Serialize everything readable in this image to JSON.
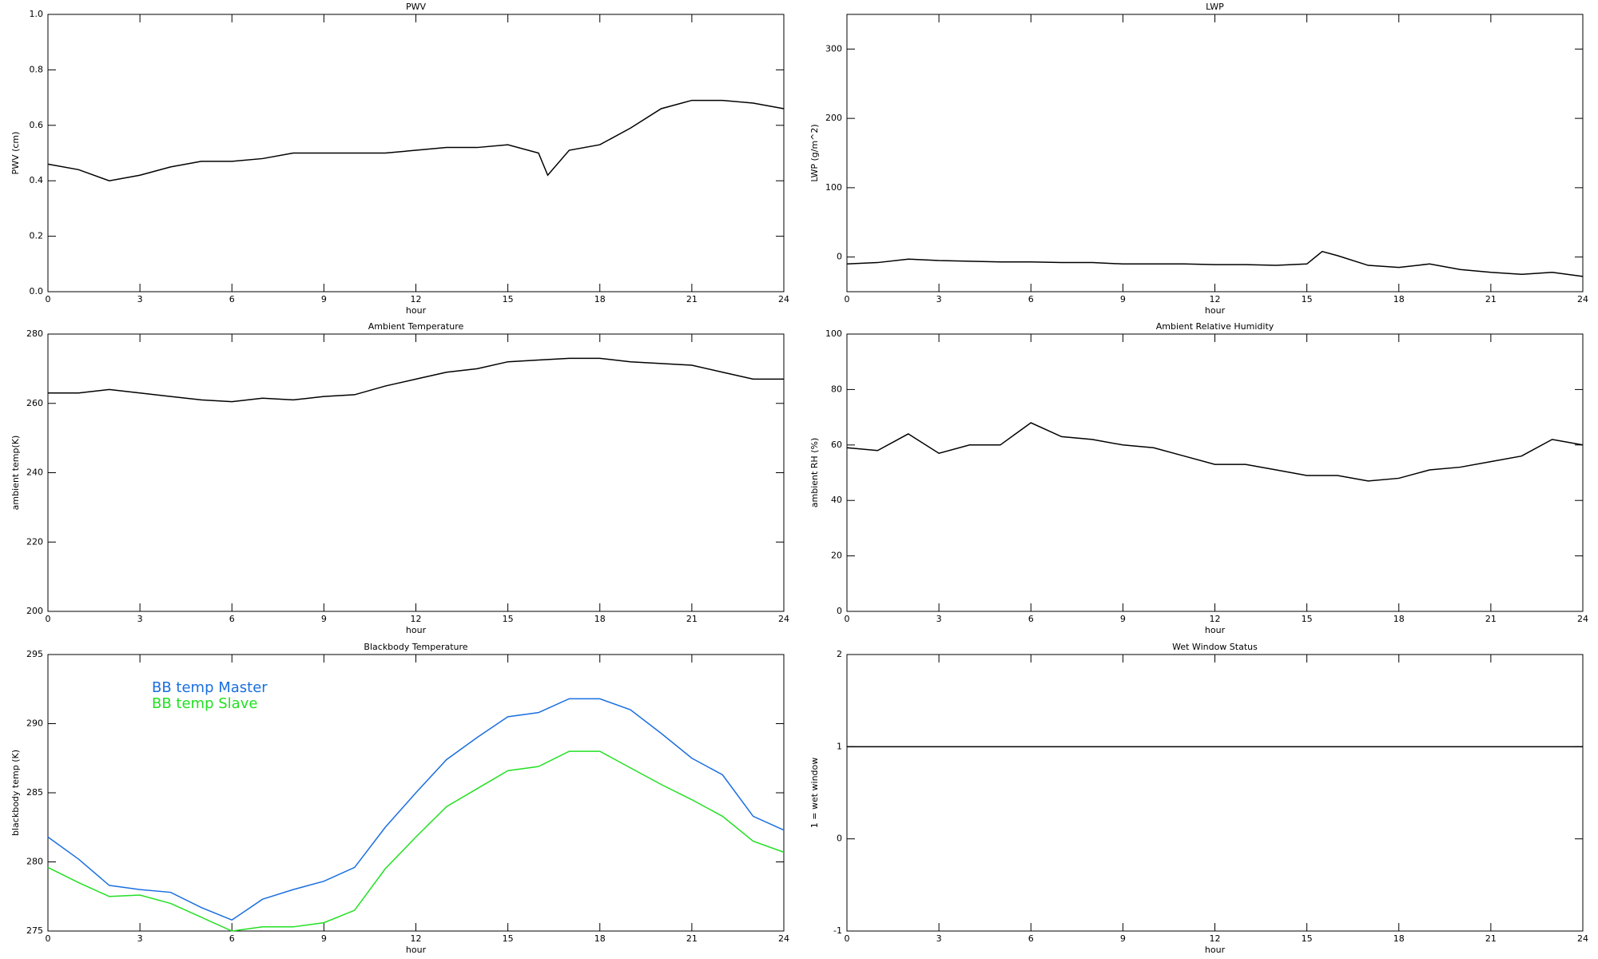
{
  "chart_data": [
    {
      "type": "line",
      "title": "PWV",
      "xlabel": "hour",
      "ylabel": "PWV (cm)",
      "x": [
        0,
        1,
        2,
        3,
        4,
        5,
        6,
        7,
        8,
        9,
        10,
        11,
        12,
        13,
        14,
        15,
        16,
        16.3,
        17,
        18,
        19,
        20,
        21,
        22,
        23,
        24
      ],
      "values": [
        0.46,
        0.44,
        0.4,
        0.42,
        0.45,
        0.47,
        0.47,
        0.48,
        0.5,
        0.5,
        0.5,
        0.5,
        0.51,
        0.52,
        0.52,
        0.53,
        0.5,
        0.42,
        0.51,
        0.53,
        0.59,
        0.66,
        0.69,
        0.69,
        0.68,
        0.66
      ],
      "color": "#000000",
      "xlim": [
        0,
        24
      ],
      "xticks": [
        0,
        3,
        6,
        9,
        12,
        15,
        18,
        21,
        24
      ],
      "ylim": [
        0,
        1
      ],
      "yticks": [
        {
          "value": 0,
          "label": "0.0"
        },
        0.2,
        0.4,
        0.6,
        0.8,
        {
          "value": 1,
          "label": "1.0"
        }
      ]
    },
    {
      "type": "line",
      "title": "LWP",
      "xlabel": "hour",
      "ylabel": "LWP (g/m^2)",
      "x": [
        0,
        1,
        2,
        3,
        4,
        5,
        6,
        7,
        8,
        9,
        10,
        11,
        12,
        13,
        14,
        15,
        15.5,
        16,
        17,
        18,
        19,
        20,
        21,
        22,
        23,
        24
      ],
      "values": [
        -10,
        -8,
        -3,
        -5,
        -6,
        -7,
        -7,
        -8,
        -8,
        -10,
        -10,
        -10,
        -11,
        -11,
        -12,
        -10,
        8,
        2,
        -12,
        -15,
        -10,
        -18,
        -22,
        -25,
        -22,
        -28
      ],
      "color": "#000000",
      "xlim": [
        0,
        24
      ],
      "xticks": [
        0,
        3,
        6,
        9,
        12,
        15,
        18,
        21,
        24
      ],
      "ylim": [
        -50,
        350
      ],
      "yticks": [
        0,
        100,
        200,
        300
      ]
    },
    {
      "type": "line",
      "title": "Ambient Temperature",
      "xlabel": "hour",
      "ylabel": "ambient temp(K)",
      "x": [
        0,
        1,
        2,
        3,
        4,
        5,
        6,
        7,
        8,
        9,
        10,
        11,
        12,
        13,
        14,
        15,
        16,
        17,
        18,
        19,
        20,
        21,
        22,
        23,
        24
      ],
      "values": [
        263,
        263,
        264,
        263,
        262,
        261,
        260.5,
        261.5,
        261,
        262,
        262.5,
        265,
        267,
        269,
        270,
        272,
        272.5,
        273,
        273,
        272,
        271.5,
        271,
        269,
        267,
        267
      ],
      "color": "#000000",
      "xlim": [
        0,
        24
      ],
      "xticks": [
        0,
        3,
        6,
        9,
        12,
        15,
        18,
        21,
        24
      ],
      "ylim": [
        200,
        280
      ],
      "yticks": [
        200,
        220,
        240,
        260,
        280
      ]
    },
    {
      "type": "line",
      "title": "Ambient Relative Humidity",
      "xlabel": "hour",
      "ylabel": "ambient RH (%)",
      "x": [
        0,
        1,
        2,
        3,
        4,
        5,
        6,
        7,
        8,
        9,
        10,
        11,
        12,
        13,
        14,
        15,
        16,
        17,
        18,
        19,
        20,
        21,
        22,
        23,
        24
      ],
      "values": [
        59,
        58,
        64,
        57,
        60,
        60,
        68,
        63,
        62,
        60,
        59,
        56,
        53,
        53,
        51,
        49,
        49,
        47,
        48,
        51,
        52,
        54,
        56,
        62,
        60
      ],
      "color": "#000000",
      "xlim": [
        0,
        24
      ],
      "xticks": [
        0,
        3,
        6,
        9,
        12,
        15,
        18,
        21,
        24
      ],
      "ylim": [
        0,
        100
      ],
      "yticks": [
        0,
        20,
        40,
        60,
        80,
        100
      ]
    },
    {
      "type": "line",
      "title": "Blackbody Temperature",
      "xlabel": "hour",
      "ylabel": "blackbody temp (K)",
      "x": [
        0,
        1,
        2,
        3,
        4,
        5,
        6,
        7,
        8,
        9,
        10,
        11,
        12,
        13,
        14,
        15,
        16,
        17,
        18,
        19,
        20,
        21,
        22,
        23,
        24
      ],
      "series": [
        {
          "name": "BB temp Master",
          "color": "#1a6fe0",
          "values": [
            281.8,
            280.2,
            278.3,
            278.0,
            277.8,
            276.7,
            275.8,
            277.3,
            278.0,
            278.6,
            279.6,
            282.5,
            285,
            287.4,
            289,
            290.5,
            290.8,
            291.8,
            291.8,
            291,
            289.3,
            287.5,
            286.3,
            283.3,
            282.3
          ]
        },
        {
          "name": "BB temp Slave",
          "color": "#22e022",
          "values": [
            279.6,
            278.5,
            277.5,
            277.6,
            277.0,
            276.0,
            275,
            275.3,
            275.3,
            275.6,
            276.5,
            279.5,
            281.8,
            284,
            285.3,
            286.6,
            286.9,
            288,
            288,
            286.8,
            285.6,
            284.5,
            283.3,
            281.5,
            280.7
          ]
        }
      ],
      "legend": "upper left",
      "xlim": [
        0,
        24
      ],
      "xticks": [
        0,
        3,
        6,
        9,
        12,
        15,
        18,
        21,
        24
      ],
      "ylim": [
        275,
        295
      ],
      "yticks": [
        275,
        280,
        285,
        290,
        295
      ]
    },
    {
      "type": "line",
      "title": "Wet Window Status",
      "xlabel": "hour",
      "ylabel": "1 = wet window",
      "x": [
        0,
        24
      ],
      "values": [
        1,
        1
      ],
      "color": "#000000",
      "xlim": [
        0,
        24
      ],
      "xticks": [
        0,
        3,
        6,
        9,
        12,
        15,
        18,
        21,
        24
      ],
      "ylim": [
        -1,
        2
      ],
      "yticks": [
        -1,
        0,
        1,
        2
      ]
    }
  ]
}
